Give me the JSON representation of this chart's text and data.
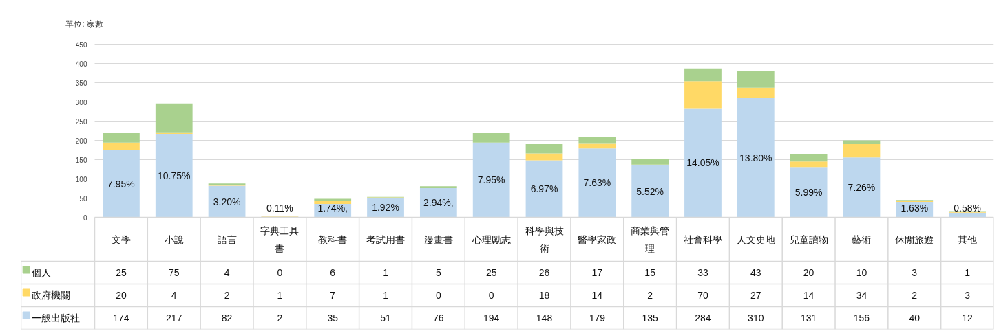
{
  "chart_data": {
    "type": "bar",
    "stacked": true,
    "ylabel": "單位: 家數",
    "categories": [
      "文學",
      "小說",
      "語言",
      "字典工具書",
      "教科書",
      "考試用書",
      "漫畫書",
      "心理勵志",
      "科學與技術",
      "醫學家政",
      "商業與管理",
      "社會科學",
      "人文史地",
      "兒童讀物",
      "藝術",
      "休閒旅遊",
      "其他"
    ],
    "series": [
      {
        "name": "一般出版社",
        "color": "#bdd7ee",
        "values": [
          174,
          217,
          82,
          2,
          35,
          51,
          76,
          194,
          148,
          179,
          135,
          284,
          310,
          131,
          156,
          40,
          12
        ]
      },
      {
        "name": "政府機關",
        "color": "#ffd966",
        "values": [
          20,
          4,
          2,
          1,
          7,
          1,
          0,
          0,
          18,
          14,
          2,
          70,
          27,
          14,
          34,
          2,
          3
        ]
      },
      {
        "name": "個人",
        "color": "#a9d18e",
        "values": [
          25,
          75,
          4,
          0,
          6,
          1,
          5,
          25,
          26,
          17,
          15,
          33,
          43,
          20,
          10,
          3,
          1
        ]
      }
    ],
    "ylim": [
      0,
      450
    ],
    "yticks": [
      0,
      50,
      100,
      150,
      200,
      250,
      300,
      350,
      400,
      450
    ],
    "grid": "y",
    "legend": "bottom",
    "data_labels": true,
    "annotations": [
      "7.95%",
      "10.75%",
      "3.20%",
      "0.11%",
      "1.74%,",
      "1.92%",
      "2.94%,",
      "7.95%",
      "6.97%",
      "7.63%",
      "5.52%",
      "14.05%",
      "13.80%",
      "5.99%",
      "7.26%",
      "1.63%",
      "0.58%"
    ]
  }
}
